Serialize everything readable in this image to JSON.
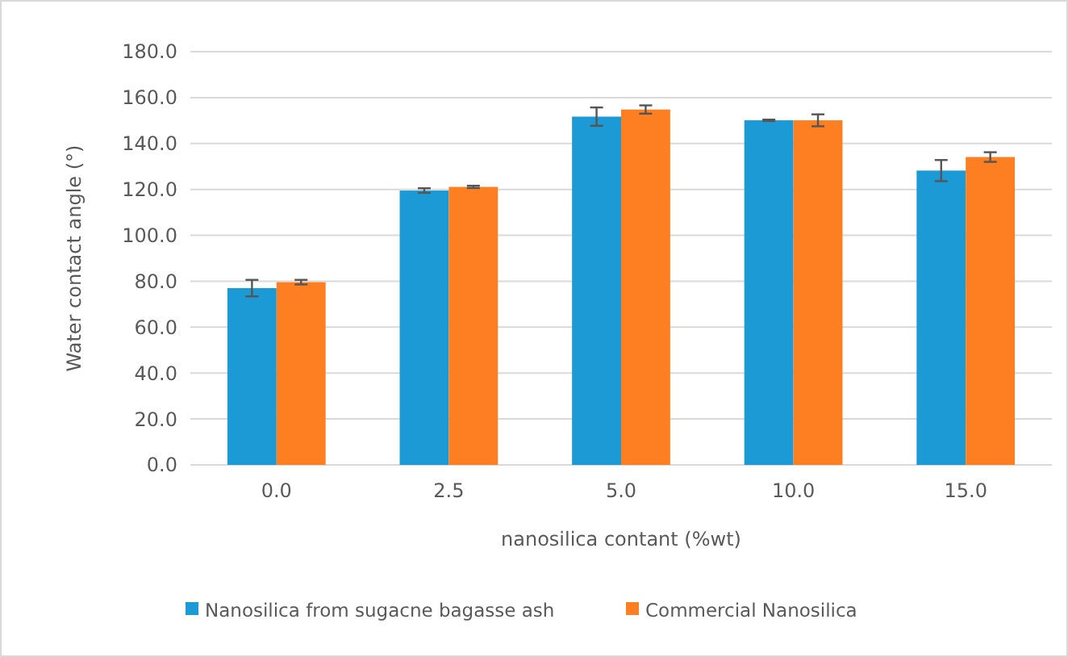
{
  "chart_data": {
    "type": "bar",
    "xlabel": "nanosilica contant (%wt)",
    "ylabel": "Water contact angle (°)",
    "categories": [
      "0.0",
      "2.5",
      "5.0",
      "10.0",
      "15.0"
    ],
    "series": [
      {
        "name": "Nanosilica from sugacne bagasse ash",
        "color": "#1b9ad6",
        "values": [
          77,
          119.5,
          151.7,
          150.1,
          128.2
        ],
        "errors": [
          3.6,
          1,
          4,
          0.3,
          4.6
        ]
      },
      {
        "name": "Commercial Nanosilica",
        "color": "#fe7f22",
        "values": [
          79.6,
          121.1,
          154.8,
          150.1,
          134.1
        ],
        "errors": [
          1,
          0.5,
          1.8,
          2.6,
          2.1
        ]
      }
    ],
    "ylim": [
      0,
      180
    ],
    "yticks": [
      {
        "value": 0,
        "label": "0.0"
      },
      {
        "value": 20,
        "label": "20.0"
      },
      {
        "value": 40,
        "label": "40.0"
      },
      {
        "value": 60,
        "label": "60.0"
      },
      {
        "value": 80,
        "label": "80.0"
      },
      {
        "value": 100,
        "label": "100.0"
      },
      {
        "value": 120,
        "label": "120.0"
      },
      {
        "value": 140,
        "label": "140.0"
      },
      {
        "value": 160,
        "label": "160.0"
      },
      {
        "value": 180,
        "label": "180.0"
      }
    ],
    "grid": "y",
    "legend": "bottom"
  }
}
